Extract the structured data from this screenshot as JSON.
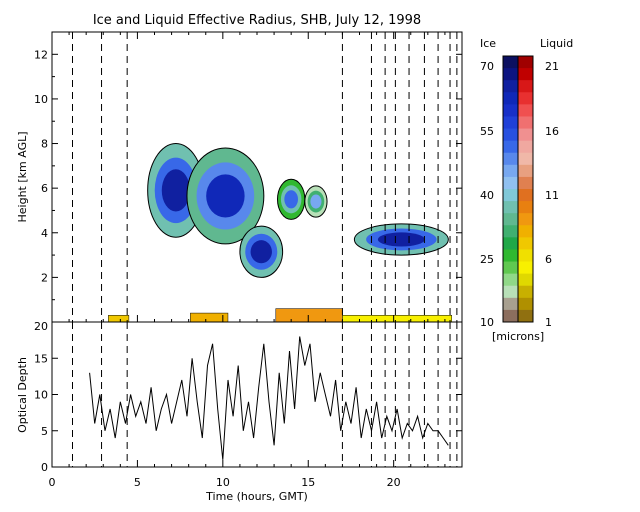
{
  "chart_data": [
    {
      "type": "heatmap",
      "title": "Ice and Liquid Effective Radius, SHB, July 12, 1998",
      "xlabel": "",
      "ylabel": "Height [km AGL]",
      "xlim": [
        0,
        24
      ],
      "ylim": [
        0,
        13
      ],
      "yticks": [
        0,
        2,
        4,
        6,
        8,
        10,
        12
      ],
      "dashed_x": [
        1.2,
        2.9,
        4.4,
        17.0,
        18.7,
        19.5,
        20.1,
        20.9,
        21.8,
        22.6,
        23.3,
        23.7
      ],
      "ice_clouds": [
        {
          "x0": 5.6,
          "x1": 8.9,
          "y0": 3.8,
          "y1": 8.0,
          "radius": 58
        },
        {
          "x0": 7.9,
          "x1": 12.4,
          "y0": 3.5,
          "y1": 7.8,
          "radius": 55
        },
        {
          "x0": 11.0,
          "x1": 13.5,
          "y0": 2.0,
          "y1": 4.3,
          "radius": 58
        },
        {
          "x0": 13.2,
          "x1": 14.8,
          "y0": 4.6,
          "y1": 6.4,
          "radius": 45
        },
        {
          "x0": 14.8,
          "x1": 16.1,
          "y0": 4.7,
          "y1": 6.1,
          "radius": 38
        },
        {
          "x0": 17.7,
          "x1": 23.2,
          "y0": 3.0,
          "y1": 4.4,
          "radius": 58
        }
      ],
      "liquid_layers": [
        {
          "x0": 3.3,
          "x1": 4.5,
          "y0": 0.0,
          "y1": 0.3,
          "radius": 7
        },
        {
          "x0": 8.1,
          "x1": 10.3,
          "y0": 0.0,
          "y1": 0.4,
          "radius": 8
        },
        {
          "x0": 13.1,
          "x1": 17.0,
          "y0": 0.0,
          "y1": 0.6,
          "radius": 9
        },
        {
          "x0": 17.0,
          "x1": 23.4,
          "y0": 0.0,
          "y1": 0.3,
          "radius": 5
        }
      ]
    },
    {
      "type": "line",
      "xlabel": "Time (hours, GMT)",
      "ylabel": "Optical Depth",
      "xlim": [
        0,
        24
      ],
      "ylim": [
        0,
        20
      ],
      "xticks": [
        0,
        5,
        10,
        15,
        20
      ],
      "yticks": [
        0,
        5,
        10,
        15,
        20
      ],
      "x": [
        2.2,
        2.5,
        2.8,
        3.1,
        3.4,
        3.7,
        4.0,
        4.3,
        4.6,
        4.9,
        5.2,
        5.5,
        5.8,
        6.1,
        6.4,
        6.7,
        7.0,
        7.3,
        7.6,
        7.9,
        8.2,
        8.5,
        8.8,
        9.1,
        9.4,
        9.7,
        10.0,
        10.3,
        10.6,
        10.9,
        11.2,
        11.5,
        11.8,
        12.1,
        12.4,
        12.7,
        13.0,
        13.3,
        13.6,
        13.9,
        14.2,
        14.5,
        14.8,
        15.1,
        15.4,
        15.7,
        16.0,
        16.3,
        16.6,
        16.9,
        17.2,
        17.5,
        17.8,
        18.1,
        18.4,
        18.7,
        19.0,
        19.3,
        19.6,
        19.9,
        20.2,
        20.5,
        20.8,
        21.1,
        21.4,
        21.7,
        22.0,
        22.3,
        22.6,
        22.9,
        23.2
      ],
      "y": [
        13,
        6,
        10,
        5,
        8,
        4,
        9,
        6,
        10,
        7,
        9,
        6,
        11,
        5,
        8,
        10,
        6,
        9,
        12,
        7,
        15,
        9,
        4,
        14,
        17,
        8,
        1,
        12,
        7,
        14,
        5,
        9,
        4,
        11,
        17,
        9,
        3,
        13,
        6,
        16,
        8,
        18,
        14,
        17,
        9,
        13,
        10,
        7,
        12,
        5,
        9,
        6,
        11,
        4,
        8,
        5,
        9,
        4,
        7,
        5,
        8,
        4,
        6,
        5,
        7,
        4,
        6,
        5,
        5,
        4,
        3
      ]
    },
    {
      "type": "heatmap",
      "legend": {
        "ice_label": "Ice",
        "liquid_label": "Liquid",
        "unit": "[microns]",
        "ice_ticks": [
          "70",
          "55",
          "40",
          "25",
          "10"
        ],
        "liquid_ticks": [
          "21",
          "16",
          "11",
          "6",
          "1"
        ],
        "ice_colors": [
          "#0c1060",
          "#0c1480",
          "#1020a0",
          "#1028b8",
          "#1830c8",
          "#2040d8",
          "#2850e0",
          "#3868e8",
          "#5888ec",
          "#78a8f0",
          "#90c0f0",
          "#80c8d8",
          "#70c0b0",
          "#60b890",
          "#40b070",
          "#20a848",
          "#30b830",
          "#60c850",
          "#90d888",
          "#b8e0b8",
          "#a8a090",
          "#8c6e5e"
        ],
        "liquid_colors": [
          "#a00000",
          "#c00000",
          "#d81818",
          "#e83030",
          "#f05050",
          "#f07070",
          "#f09090",
          "#f0a8a0",
          "#f0b8a8",
          "#e8a080",
          "#e08050",
          "#e07020",
          "#e88010",
          "#f09810",
          "#f0b000",
          "#f0c800",
          "#f0e000",
          "#f8f000",
          "#e0d800",
          "#c8b000",
          "#b09000",
          "#907010"
        ]
      }
    }
  ]
}
